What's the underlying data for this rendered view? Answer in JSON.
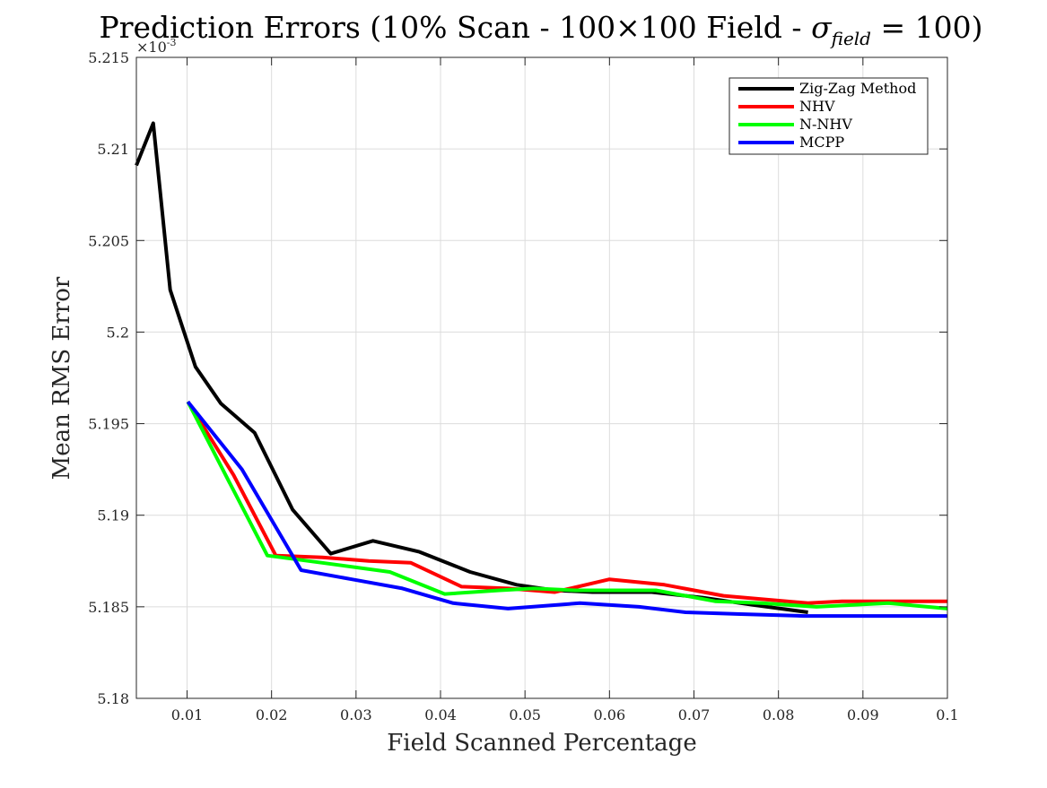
{
  "chart_data": {
    "type": "line",
    "title": "Prediction Errors (10% Scan - 100×100 Field - ",
    "title_math": {
      "symbol": "σ",
      "subscript": "field",
      "suffix": " = 100)"
    },
    "xlabel": "Field Scanned Percentage",
    "ylabel": "Mean RMS Error",
    "exponent_label": {
      "base": "×10",
      "power": "-3"
    },
    "xlim": [
      0.004,
      0.1
    ],
    "ylim": [
      5.18,
      5.215
    ],
    "xticks": [
      0.01,
      0.02,
      0.03,
      0.04,
      0.05,
      0.06,
      0.07,
      0.08,
      0.09,
      0.1
    ],
    "xtick_labels": [
      "0.01",
      "0.02",
      "0.03",
      "0.04",
      "0.05",
      "0.06",
      "0.07",
      "0.08",
      "0.09",
      "0.1"
    ],
    "yticks": [
      5.18,
      5.185,
      5.19,
      5.195,
      5.2,
      5.205,
      5.21,
      5.215
    ],
    "ytick_labels": [
      "5.18",
      "5.185",
      "5.19",
      "5.195",
      "5.2",
      "5.205",
      "5.21",
      "5.215"
    ],
    "grid": true,
    "legend_position": "top-right",
    "series": [
      {
        "name": "Zig-Zag Method",
        "color": "#000000",
        "x": [
          0.004,
          0.006,
          0.008,
          0.011,
          0.014,
          0.018,
          0.0225,
          0.027,
          0.032,
          0.0375,
          0.0435,
          0.049,
          0.0535,
          0.058,
          0.065,
          0.071,
          0.077,
          0.0835
        ],
        "y": [
          5.2091,
          5.2114,
          5.2023,
          5.1981,
          5.1961,
          5.1945,
          5.1903,
          5.1879,
          5.1886,
          5.188,
          5.1869,
          5.1862,
          5.1859,
          5.1858,
          5.1858,
          5.1855,
          5.1851,
          5.1847
        ]
      },
      {
        "name": "NHV",
        "color": "#ff0000",
        "x": [
          0.0101,
          0.0155,
          0.0205,
          0.026,
          0.0315,
          0.0365,
          0.0425,
          0.048,
          0.0535,
          0.06,
          0.0665,
          0.0735,
          0.0835,
          0.0875,
          0.1
        ],
        "y": [
          5.1962,
          5.1922,
          5.1878,
          5.1877,
          5.1875,
          5.1874,
          5.1861,
          5.186,
          5.1858,
          5.1865,
          5.1862,
          5.1856,
          5.1852,
          5.1853,
          5.1853
        ]
      },
      {
        "name": "N-NHV",
        "color": "#00ff00",
        "x": [
          0.0101,
          0.015,
          0.0195,
          0.026,
          0.034,
          0.0405,
          0.047,
          0.051,
          0.056,
          0.0655,
          0.0725,
          0.078,
          0.0845,
          0.093,
          0.1
        ],
        "y": [
          5.1962,
          5.1918,
          5.1878,
          5.1874,
          5.1869,
          5.1857,
          5.1859,
          5.186,
          5.1859,
          5.1859,
          5.1853,
          5.1852,
          5.185,
          5.1852,
          5.1849
        ]
      },
      {
        "name": "MCPP",
        "color": "#0000ff",
        "x": [
          0.0101,
          0.0165,
          0.0235,
          0.0295,
          0.0355,
          0.0415,
          0.048,
          0.0565,
          0.0635,
          0.069,
          0.0755,
          0.083,
          0.09,
          0.1
        ],
        "y": [
          5.1962,
          5.1925,
          5.187,
          5.1865,
          5.186,
          5.1852,
          5.1849,
          5.1852,
          5.185,
          5.1847,
          5.1846,
          5.1845,
          5.1845,
          5.1845
        ]
      }
    ]
  }
}
